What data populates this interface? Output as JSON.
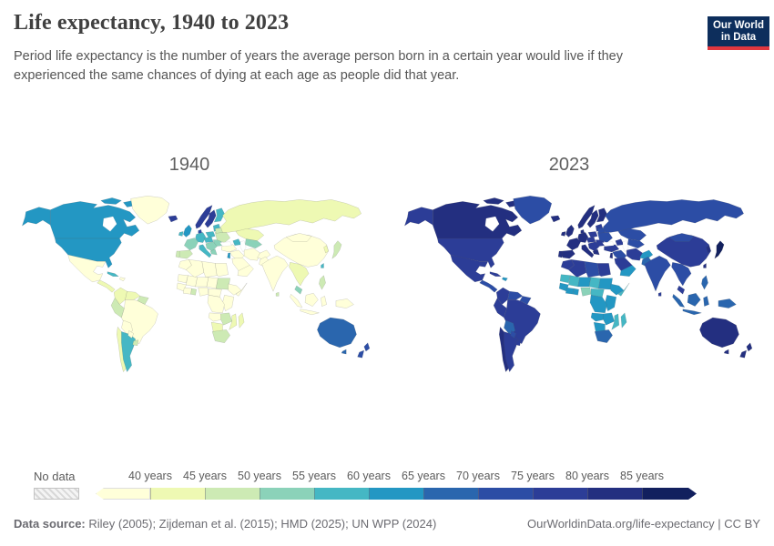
{
  "header": {
    "title": "Life expectancy, 1940 to 2023",
    "subtitle": "Period life expectancy is the number of years the average person born in a certain year would live if they experienced the same chances of dying at each age as people did that year.",
    "logo": {
      "line1": "Our World",
      "line2": "in Data",
      "bg": "#0d2e5c",
      "accent": "#e0373f"
    }
  },
  "maps": {
    "left_label": "1940",
    "right_label": "2023"
  },
  "legend": {
    "no_data_label": "No data",
    "tick_labels": [
      "40 years",
      "45 years",
      "50 years",
      "55 years",
      "60 years",
      "65 years",
      "70 years",
      "75 years",
      "80 years",
      "85 years"
    ]
  },
  "footer": {
    "source_prefix": "Data source:",
    "source_text": " Riley (2005); Zijdeman et al. (2015); HMD (2025); UN WPP (2024)",
    "credit": "OurWorldinData.org/life-expectancy | CC BY"
  },
  "chart_data": {
    "type": "choropleth_map_pair",
    "title": "Life expectancy, 1940 to 2023",
    "years": [
      "1940",
      "2023"
    ],
    "unit": "years",
    "bin_thresholds": [
      40,
      45,
      50,
      55,
      60,
      65,
      70,
      75,
      80,
      85
    ],
    "palette": [
      "#ffffd9",
      "#eef9b3",
      "#cdeab4",
      "#8bd2b9",
      "#45b7c4",
      "#2397c3",
      "#2a66ae",
      "#2c4da5",
      "#2c3d97",
      "#232f80",
      "#12205e"
    ],
    "no_data_pattern": "diagonal-hatch",
    "regions": [
      {
        "id": "canada",
        "name": "Canada",
        "v1940": 63,
        "v2023": 82
      },
      {
        "id": "canada_is1",
        "name": "Canada (Arctic Islands W)",
        "v1940": 63,
        "v2023": 82
      },
      {
        "id": "canada_is2",
        "name": "Canada (Arctic Islands E)",
        "v1940": 63,
        "v2023": 82
      },
      {
        "id": "alaska",
        "name": "Alaska (United States)",
        "v1940": 63,
        "v2023": 78
      },
      {
        "id": "usa",
        "name": "United States",
        "v1940": 63,
        "v2023": 78
      },
      {
        "id": "greenland",
        "name": "Greenland",
        "v1940": 38,
        "v2023": 72
      },
      {
        "id": "iceland",
        "name": "Iceland",
        "v1940": 76,
        "v2023": 83
      },
      {
        "id": "mexico",
        "name": "Mexico",
        "v1940": 38,
        "v2023": 75
      },
      {
        "id": "central_america",
        "name": "Central America",
        "v1940": 42,
        "v2023": 74
      },
      {
        "id": "cuba",
        "name": "Cuba",
        "v1940": 58,
        "v2023": 78
      },
      {
        "id": "hispaniola",
        "name": "Haiti & Dominican Rep.",
        "v1940": 38,
        "v2023": 64
      },
      {
        "id": "colombia",
        "name": "Colombia",
        "v1940": 40,
        "v2023": 77
      },
      {
        "id": "venezuela",
        "name": "Venezuela",
        "v1940": 40,
        "v2023": 72
      },
      {
        "id": "guyanas",
        "name": "Guyana & Suriname",
        "v1940": 48,
        "v2023": 70
      },
      {
        "id": "brazil",
        "name": "Brazil",
        "v1940": 38,
        "v2023": 76
      },
      {
        "id": "peru",
        "name": "Peru & Ecuador",
        "v1940": 46,
        "v2023": 77
      },
      {
        "id": "bolivia",
        "name": "Bolivia",
        "v1940": 38,
        "v2023": 68
      },
      {
        "id": "chile",
        "name": "Chile",
        "v1940": 41,
        "v2023": 81
      },
      {
        "id": "argentina",
        "name": "Argentina",
        "v1940": 56,
        "v2023": 77
      },
      {
        "id": "paraguay",
        "name": "Paraguay",
        "v1940": 38,
        "v2023": 73
      },
      {
        "id": "uruguay",
        "name": "Uruguay",
        "v1940": 47,
        "v2023": 78
      },
      {
        "id": "ireland",
        "name": "Ireland",
        "v1940": 58,
        "v2023": 83
      },
      {
        "id": "uk",
        "name": "United Kingdom",
        "v1940": 63,
        "v2023": 81
      },
      {
        "id": "norway",
        "name": "Norway",
        "v1940": 76,
        "v2023": 84
      },
      {
        "id": "sweden",
        "name": "Sweden",
        "v1940": 76,
        "v2023": 84
      },
      {
        "id": "finland",
        "name": "Finland",
        "v1940": 58,
        "v2023": 82
      },
      {
        "id": "denmark",
        "name": "Denmark",
        "v1940": 72,
        "v2023": 82
      },
      {
        "id": "baltics",
        "name": "Baltic states",
        "v1940": 56,
        "v2023": 79
      },
      {
        "id": "germany",
        "name": "Germany",
        "v1940": 58,
        "v2023": 81
      },
      {
        "id": "france",
        "name": "France",
        "v1940": 52,
        "v2023": 83
      },
      {
        "id": "spain",
        "name": "Spain",
        "v1940": 47,
        "v2023": 84
      },
      {
        "id": "portugal",
        "name": "Portugal",
        "v1940": 48,
        "v2023": 83
      },
      {
        "id": "italy",
        "name": "Italy",
        "v1940": 57,
        "v2023": 84
      },
      {
        "id": "poland",
        "name": "Poland",
        "v1940": 57,
        "v2023": 78
      },
      {
        "id": "central_eu2",
        "name": "Czechia & Hungary",
        "v1940": 56,
        "v2023": 78
      },
      {
        "id": "romania_bulgaria",
        "name": "Romania & Bulgaria",
        "v1940": 51,
        "v2023": 76
      },
      {
        "id": "balkans",
        "name": "Balkans",
        "v1940": 52,
        "v2023": 78
      },
      {
        "id": "greece",
        "name": "Greece",
        "v1940": 53,
        "v2023": 82
      },
      {
        "id": "ukraine",
        "name": "Ukraine",
        "v1940": 47,
        "v2023": 73
      },
      {
        "id": "belarus",
        "name": "Belarus",
        "v1940": 47,
        "v2023": 74
      },
      {
        "id": "russia",
        "name": "Russia",
        "v1940": 43,
        "v2023": 73
      },
      {
        "id": "kazakhstan",
        "name": "Kazakhstan",
        "v1940": 43,
        "v2023": 74
      },
      {
        "id": "central_asia",
        "name": "Central Asia",
        "v1940": 52,
        "v2023": 72
      },
      {
        "id": "caucasus",
        "name": "Caucasus",
        "v1940": 57,
        "v2023": 75
      },
      {
        "id": "turkey",
        "name": "Turkey",
        "v1940": 39,
        "v2023": 78
      },
      {
        "id": "syria_iraq",
        "name": "Syria & Iraq",
        "v1940": 39,
        "v2023": 72
      },
      {
        "id": "israel_lebanon",
        "name": "Israel",
        "v1940": 62,
        "v2023": 83
      },
      {
        "id": "saudi",
        "name": "Saudi Arabia",
        "v1940": 38,
        "v2023": 78
      },
      {
        "id": "yemen_oman",
        "name": "Yemen & Oman",
        "v1940": 38,
        "v2023": 64
      },
      {
        "id": "iran",
        "name": "Iran",
        "v1940": 38,
        "v2023": 77
      },
      {
        "id": "afghanistan",
        "name": "Afghanistan",
        "v1940": 37,
        "v2023": 63
      },
      {
        "id": "pakistan",
        "name": "Pakistan",
        "v1940": 38,
        "v2023": 67
      },
      {
        "id": "india",
        "name": "India",
        "v1940": 37,
        "v2023": 72
      },
      {
        "id": "sri_lanka",
        "name": "Sri Lanka",
        "v1940": 46,
        "v2023": 77
      },
      {
        "id": "china",
        "name": "China",
        "v1940": 38,
        "v2023": 78
      },
      {
        "id": "mongolia",
        "name": "Mongolia",
        "v1940": 38,
        "v2023": 71
      },
      {
        "id": "korea",
        "name": "South Korea",
        "v1940": 42,
        "v2023": 84
      },
      {
        "id": "japan",
        "name": "Japan",
        "v1940": 47,
        "v2023": 85
      },
      {
        "id": "taiwan",
        "name": "Taiwan",
        "v1940": 56,
        "v2023": 81
      },
      {
        "id": "indochina",
        "name": "Mainland Southeast Asia",
        "v1940": 40,
        "v2023": 72
      },
      {
        "id": "malaysia",
        "name": "Malaysia",
        "v1940": 52,
        "v2023": 76
      },
      {
        "id": "philippines",
        "name": "Philippines",
        "v1940": 46,
        "v2023": 69
      },
      {
        "id": "sumatra",
        "name": "Indonesia (Sumatra)",
        "v1940": 38,
        "v2023": 68
      },
      {
        "id": "java",
        "name": "Indonesia (Java)",
        "v1940": 38,
        "v2023": 68
      },
      {
        "id": "borneo",
        "name": "Borneo",
        "v1940": 38,
        "v2023": 68
      },
      {
        "id": "sulawesi",
        "name": "Indonesia (Sulawesi)",
        "v1940": 38,
        "v2023": 68
      },
      {
        "id": "png",
        "name": "Papua New Guinea",
        "v1940": 38,
        "v2023": 66
      },
      {
        "id": "morocco",
        "name": "Morocco",
        "v1940": 38,
        "v2023": 77
      },
      {
        "id": "algeria",
        "name": "Algeria",
        "v1940": 38,
        "v2023": 78
      },
      {
        "id": "libya",
        "name": "Libya",
        "v1940": 38,
        "v2023": 73
      },
      {
        "id": "egypt",
        "name": "Egypt",
        "v1940": 39,
        "v2023": 75
      },
      {
        "id": "mauritania",
        "name": "Mauritania",
        "v1940": 37,
        "v2023": 59
      },
      {
        "id": "mali",
        "name": "Mali",
        "v1940": 37,
        "v2023": 59
      },
      {
        "id": "niger",
        "name": "Niger",
        "v1940": 37,
        "v2023": 61
      },
      {
        "id": "chad",
        "name": "Chad",
        "v1940": 37,
        "v2023": 58
      },
      {
        "id": "sudan",
        "name": "Sudan",
        "v1940": 47,
        "v2023": 64
      },
      {
        "id": "senegal_guinea",
        "name": "Senegal & Guinea",
        "v1940": 37,
        "v2023": 64
      },
      {
        "id": "ivory_liberia",
        "name": "Cote d'Ivoire & Liberia",
        "v1940": 37,
        "v2023": 61
      },
      {
        "id": "ghana_togo",
        "name": "Ghana",
        "v1940": 47,
        "v2023": 64
      },
      {
        "id": "nigeria",
        "name": "Nigeria",
        "v1940": 37,
        "v2023": 54
      },
      {
        "id": "cameroon_car",
        "name": "Cameroon & Central African Rep.",
        "v1940": 37,
        "v2023": 58
      },
      {
        "id": "ethiopia",
        "name": "Ethiopia",
        "v1940": 37,
        "v2023": 64
      },
      {
        "id": "somalia",
        "name": "Somalia",
        "v1940": 37,
        "v2023": 58
      },
      {
        "id": "kenya_tz",
        "name": "Kenya & Tanzania",
        "v1940": 39,
        "v2023": 64
      },
      {
        "id": "drc",
        "name": "DR Congo",
        "v1940": 37,
        "v2023": 62
      },
      {
        "id": "angola",
        "name": "Angola",
        "v1940": 37,
        "v2023": 62
      },
      {
        "id": "mozambique",
        "name": "Mozambique",
        "v1940": 40,
        "v2023": 58
      },
      {
        "id": "zambia_zimbabwe",
        "name": "Zambia & Zimbabwe",
        "v1940": 47,
        "v2023": 62
      },
      {
        "id": "namibia_botswana",
        "name": "Namibia & Botswana",
        "v1940": 42,
        "v2023": 63
      },
      {
        "id": "south_africa",
        "name": "South Africa",
        "v1940": 48,
        "v2023": 66
      },
      {
        "id": "madagascar",
        "name": "Madagascar",
        "v1940": 42,
        "v2023": 59
      },
      {
        "id": "australia",
        "name": "Australia",
        "v1940": 66,
        "v2023": 83
      },
      {
        "id": "tasmania",
        "name": "Tasmania",
        "v1940": 66,
        "v2023": 83
      },
      {
        "id": "nz_north",
        "name": "New Zealand (North Island)",
        "v1940": 72,
        "v2023": 82
      },
      {
        "id": "nz_south",
        "name": "New Zealand (South Island)",
        "v1940": 72,
        "v2023": 82
      }
    ]
  }
}
